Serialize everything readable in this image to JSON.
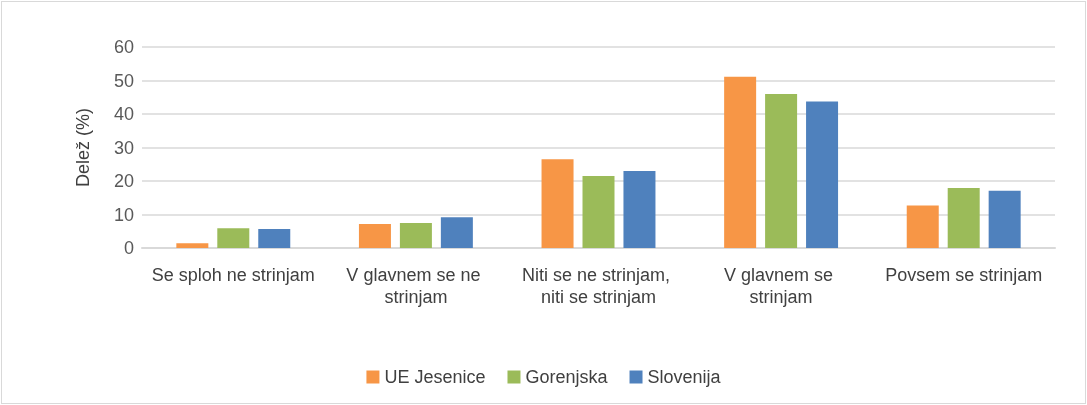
{
  "chart_data": {
    "type": "bar",
    "ylabel": "Delež (%)",
    "categories": [
      "Se sploh ne strinjam",
      "V glavnem se ne strinjam",
      "Niti se ne strinjam, niti se strinjam",
      "V glavnem se strinjam",
      "Povsem se strinjam"
    ],
    "series": [
      {
        "name": "UE Jesenice",
        "color": "#f79646",
        "values": [
          1.4,
          7.2,
          26.5,
          51.1,
          12.7
        ]
      },
      {
        "name": "Gorenjska",
        "color": "#9bbb59",
        "values": [
          5.9,
          7.5,
          21.5,
          46.0,
          17.9
        ]
      },
      {
        "name": "Slovenija",
        "color": "#4f81bd",
        "values": [
          5.7,
          9.2,
          23.0,
          43.7,
          17.1
        ]
      }
    ],
    "ylim": [
      0,
      60
    ],
    "yticks": [
      0,
      10,
      20,
      30,
      40,
      50,
      60
    ],
    "grid": "y",
    "legend": "bottom"
  }
}
